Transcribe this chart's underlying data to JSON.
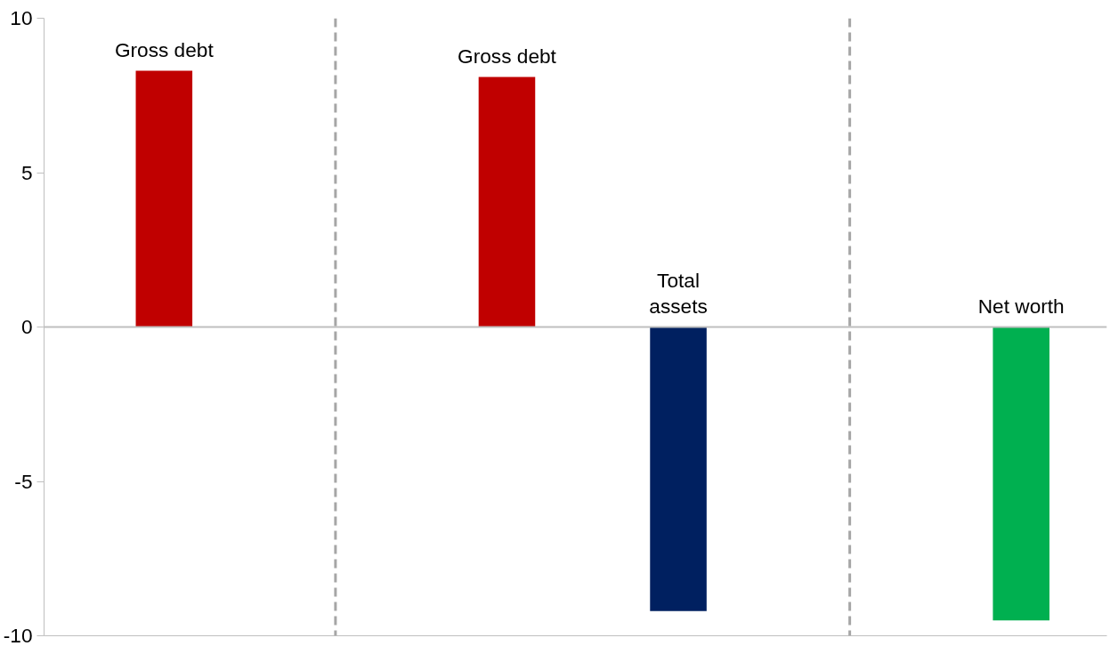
{
  "chart_data": {
    "type": "bar",
    "categories": [
      null,
      null,
      null,
      null,
      null,
      null
    ],
    "series": [
      {
        "values": [
          8.3,
          null,
          8.1,
          -9.2,
          null,
          -9.5
        ],
        "colors": [
          "#c00000",
          null,
          "#c00000",
          "#002060",
          null,
          "#00b050"
        ],
        "value_labels": [
          "Gross debt",
          null,
          "Gross debt",
          "Total\nassets",
          null,
          "Net worth"
        ]
      }
    ],
    "ylim": [
      -10,
      10
    ],
    "yticks": [
      -10,
      -5,
      0,
      5,
      10
    ],
    "tick_labels": "y",
    "grid": false,
    "ref_lines": [
      {
        "axis": "y",
        "value": 0,
        "color": "#bfbfbf",
        "line_style": "solid"
      }
    ]
  }
}
